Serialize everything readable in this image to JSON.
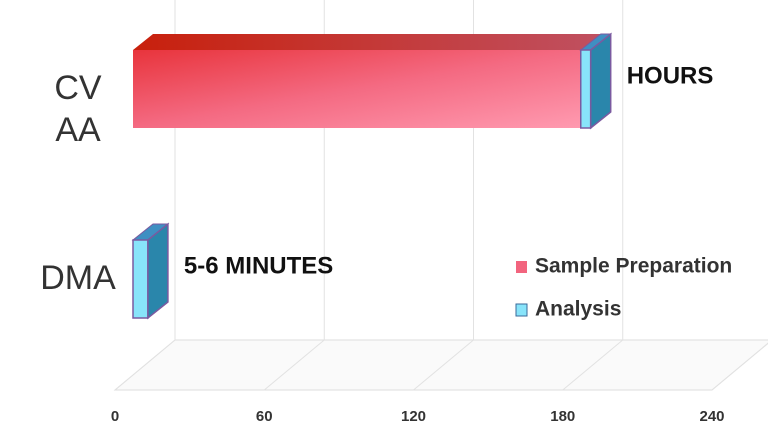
{
  "chart_data": {
    "type": "bar3d",
    "orientation": "horizontal",
    "stacked": true,
    "categories": [
      "CV AA",
      "DMA"
    ],
    "series": [
      {
        "name": "Sample Preparation",
        "color": "#f2647e",
        "values": [
          180,
          0
        ]
      },
      {
        "name": "Analysis",
        "color": "#88e4fa",
        "values": [
          4,
          6
        ]
      }
    ],
    "annotations": [
      "HOURS",
      "5-6 MINUTES"
    ],
    "xlim": [
      0,
      240
    ],
    "xticks": [
      0,
      60,
      120,
      180,
      240
    ],
    "grid": true,
    "legend": "right"
  }
}
